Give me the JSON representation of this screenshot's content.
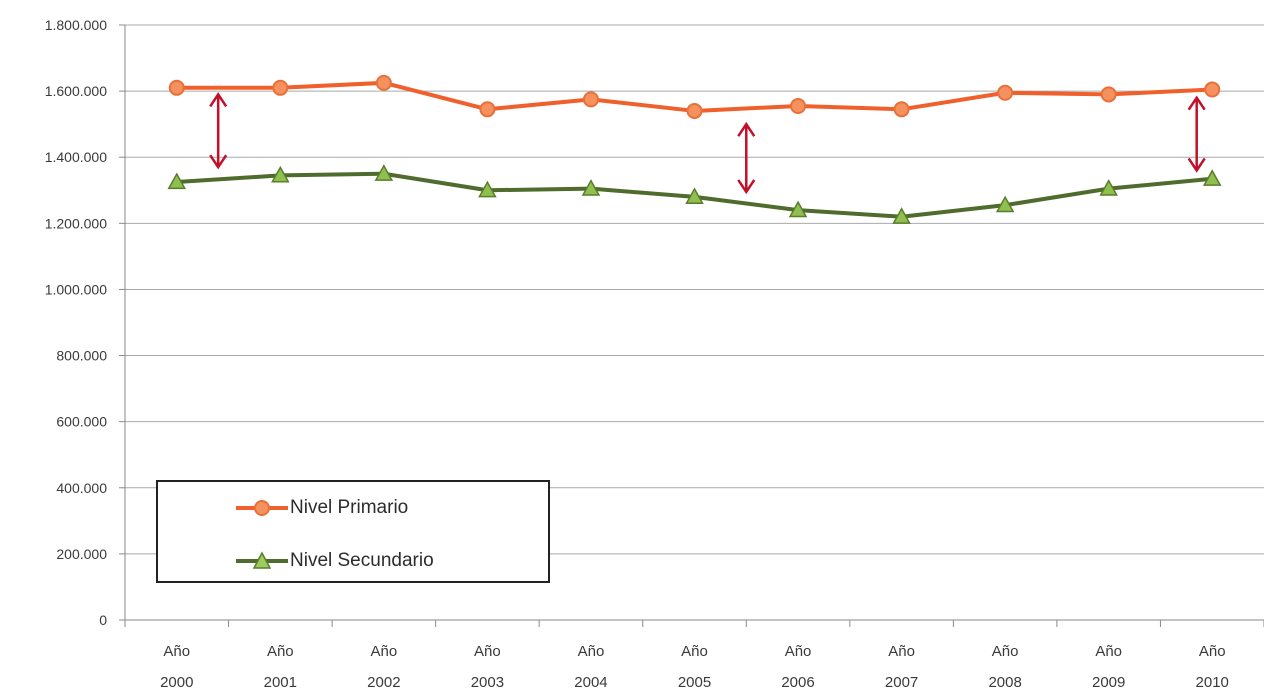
{
  "chart_data": {
    "type": "line",
    "title": "",
    "xlabel": "",
    "ylabel": "",
    "categories": [
      [
        "Año",
        "2000"
      ],
      [
        "Año",
        "2001"
      ],
      [
        "Año",
        "2002"
      ],
      [
        "Año",
        "2003"
      ],
      [
        "Año",
        "2004"
      ],
      [
        "Año",
        "2005"
      ],
      [
        "Año",
        "2006"
      ],
      [
        "Año",
        "2007"
      ],
      [
        "Año",
        "2008"
      ],
      [
        "Año",
        "2009"
      ],
      [
        "Año",
        "2010"
      ]
    ],
    "ylim": [
      0,
      1800000
    ],
    "yticks": [
      0,
      200000,
      400000,
      600000,
      800000,
      1000000,
      1200000,
      1400000,
      1600000,
      1800000
    ],
    "ytick_labels": [
      "0",
      "200.000",
      "400.000",
      "600.000",
      "800.000",
      "1.000.000",
      "1.200.000",
      "1.400.000",
      "1.600.000",
      "1.800.000"
    ],
    "grid": true,
    "legend_position": "bottom-left",
    "series": [
      {
        "name": "Nivel Primario",
        "color": "#f0602c",
        "marker": "circle",
        "values": [
          1610000,
          1610000,
          1625000,
          1545000,
          1575000,
          1540000,
          1555000,
          1545000,
          1595000,
          1590000,
          1605000
        ]
      },
      {
        "name": "Nivel Secundario",
        "color": "#4f6b2e",
        "marker_color": "#8fbf4f",
        "marker": "triangle",
        "values": [
          1325000,
          1345000,
          1350000,
          1300000,
          1305000,
          1280000,
          1240000,
          1220000,
          1255000,
          1305000,
          1335000
        ]
      }
    ],
    "annotations": [
      {
        "type": "double-arrow",
        "color": "#c0102a",
        "category_index": 0.4,
        "from": 1370000,
        "to": 1590000
      },
      {
        "type": "double-arrow",
        "color": "#c0102a",
        "category_index": 5.5,
        "from": 1295000,
        "to": 1500000
      },
      {
        "type": "double-arrow",
        "color": "#c0102a",
        "category_index": 9.85,
        "from": 1360000,
        "to": 1580000
      }
    ]
  }
}
